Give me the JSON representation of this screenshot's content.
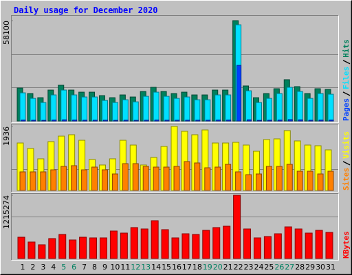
{
  "chart_data": [
    {
      "type": "bar",
      "title": "Daily usage for December 2020",
      "title_color": "#0000ff",
      "ylim": [
        0,
        60100
      ],
      "yticks": [
        58100
      ],
      "gridlines": [
        38733,
        19367
      ],
      "series": [
        {
          "name": "Hits",
          "color": "#00805c",
          "values": [
            19100,
            15900,
            13500,
            17900,
            20700,
            17900,
            16700,
            16700,
            14700,
            13500,
            15100,
            13900,
            17100,
            19500,
            17100,
            15900,
            16700,
            15100,
            15100,
            17900,
            17900,
            58100,
            20300,
            13500,
            15900,
            18700,
            23900,
            19900,
            15900,
            18700,
            18300
          ]
        },
        {
          "name": "Files",
          "color": "#00e0ff",
          "values": [
            16300,
            13100,
            10700,
            15100,
            17900,
            15100,
            13900,
            13900,
            11900,
            10700,
            12300,
            11100,
            14300,
            16700,
            14300,
            13100,
            13900,
            12300,
            12300,
            15100,
            15100,
            55700,
            17500,
            10700,
            13100,
            15900,
            19500,
            17100,
            13100,
            15900,
            15500
          ]
        },
        {
          "name": "Pages",
          "color": "#0040ff",
          "values": [
            600,
            500,
            400,
            600,
            700,
            600,
            500,
            500,
            500,
            400,
            500,
            400,
            500,
            600,
            500,
            500,
            500,
            500,
            500,
            600,
            600,
            32200,
            700,
            400,
            500,
            600,
            800,
            700,
            500,
            600,
            600
          ]
        }
      ]
    },
    {
      "type": "bar",
      "ylim": [
        0,
        1997
      ],
      "yticks": [
        1936
      ],
      "gridlines": [
        645
      ],
      "series": [
        {
          "name": "Visits",
          "color": "#ffff00",
          "values": [
            1435,
            1269,
            957,
            1477,
            1643,
            1685,
            1518,
            936,
            770,
            957,
            1518,
            1373,
            770,
            998,
            1331,
            1936,
            1789,
            1685,
            1830,
            1435,
            1435,
            1456,
            1373,
            1186,
            1539,
            1560,
            1810,
            1498,
            1373,
            1352,
            1227
          ]
        },
        {
          "name": "Sites",
          "color": "#ff8000",
          "values": [
            562,
            562,
            562,
            624,
            728,
            749,
            624,
            707,
            624,
            499,
            811,
            811,
            728,
            707,
            707,
            728,
            874,
            832,
            686,
            707,
            790,
            562,
            478,
            499,
            728,
            728,
            790,
            582,
            582,
            499,
            582
          ]
        }
      ]
    },
    {
      "type": "bar",
      "ylim": [
        0,
        1242000
      ],
      "yticks": [
        1215274
      ],
      "gridlines": [
        810183
      ],
      "categories": [
        "1",
        "2",
        "3",
        "4",
        "5",
        "6",
        "7",
        "8",
        "9",
        "10",
        "11",
        "12",
        "13",
        "14",
        "15",
        "16",
        "17",
        "18",
        "19",
        "20",
        "21",
        "22",
        "23",
        "24",
        "25",
        "26",
        "27",
        "28",
        "29",
        "30",
        "31"
      ],
      "category_colors": [
        "#000000",
        "#000000",
        "#000000",
        "#000000",
        "#008060",
        "#008060",
        "#000000",
        "#000000",
        "#000000",
        "#000000",
        "#000000",
        "#008060",
        "#008060",
        "#000000",
        "#000000",
        "#000000",
        "#000000",
        "#000000",
        "#008060",
        "#008060",
        "#000000",
        "#000000",
        "#000000",
        "#000000",
        "#000000",
        "#008060",
        "#008060",
        "#000000",
        "#000000",
        "#000000",
        "#000000"
      ],
      "series": [
        {
          "name": "KBytes",
          "color": "#ff0000",
          "values": [
            409500,
            317000,
            264200,
            383100,
            462300,
            356600,
            409500,
            396300,
            396300,
            528400,
            488700,
            594400,
            568000,
            726500,
            554800,
            396300,
            475500,
            462300,
            541600,
            594400,
            620800,
            1215274,
            568000,
            396300,
            422700,
            475500,
            607600,
            568000,
            488700,
            541600,
            501900
          ]
        }
      ]
    }
  ]
}
